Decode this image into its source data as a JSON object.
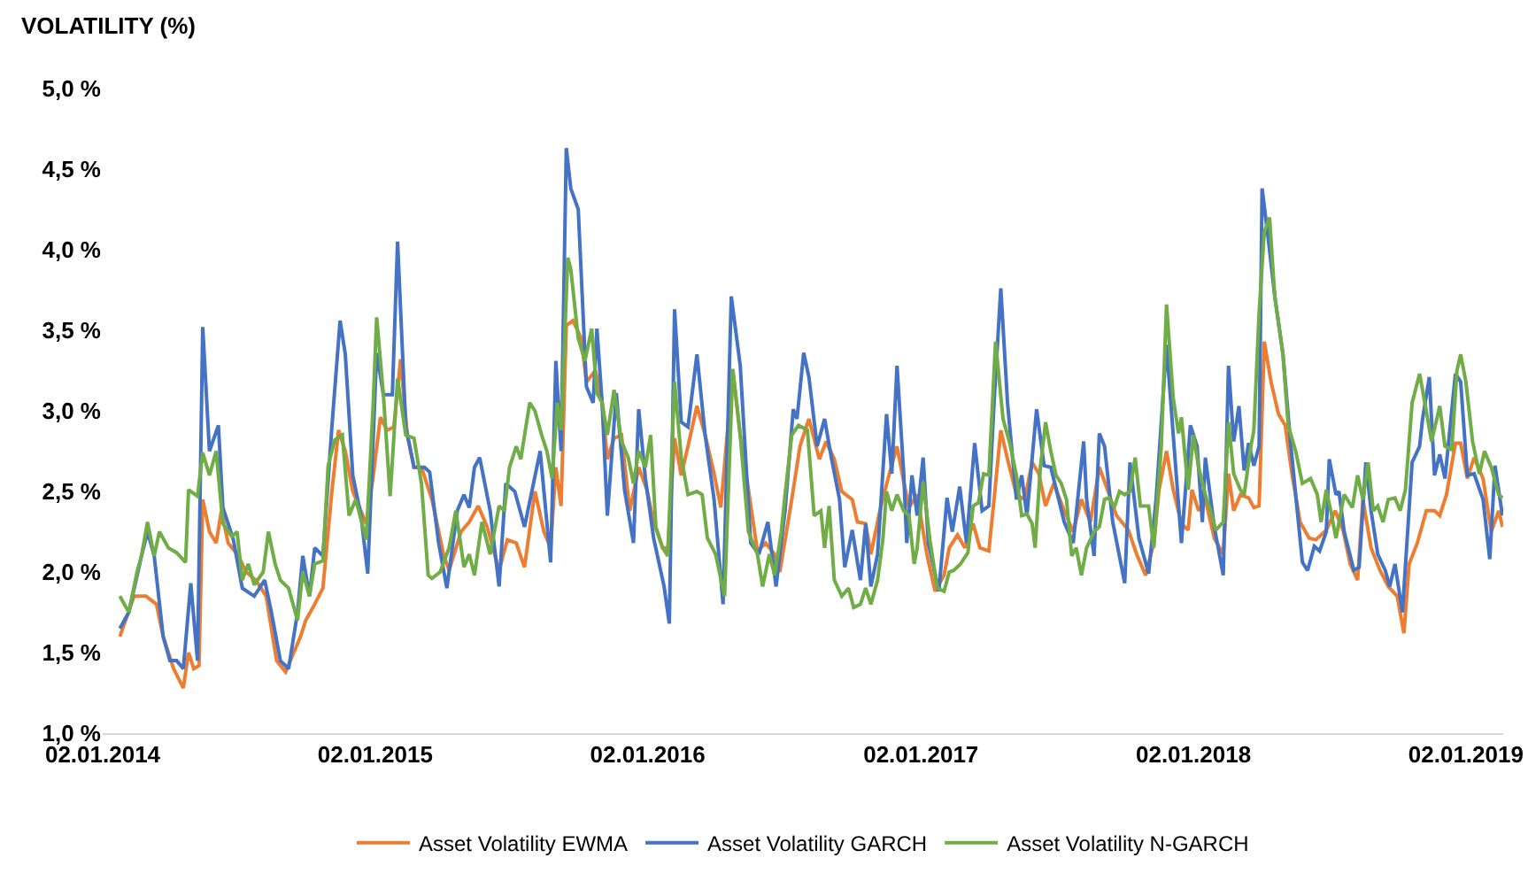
{
  "chart_data": {
    "type": "line",
    "ylabel": "VOLATILITY (%)",
    "xlim": [
      "2014-01-02",
      "2019-02-21"
    ],
    "ylim": [
      1,
      5
    ],
    "xticks": [
      {
        "value": "2014-01-02",
        "label": "02.01.2014"
      },
      {
        "value": "2015-01-02",
        "label": "02.01.2015"
      },
      {
        "value": "2016-01-02",
        "label": "02.01.2016"
      },
      {
        "value": "2017-01-02",
        "label": "02.01.2017"
      },
      {
        "value": "2018-01-02",
        "label": "02.01.2018"
      },
      {
        "value": "2019-01-02",
        "label": "02.01.2019"
      }
    ],
    "yticks": [
      {
        "value": 1,
        "label": "1,0 %"
      },
      {
        "value": 1.5,
        "label": "1,5 %"
      },
      {
        "value": 2,
        "label": "2,0 %"
      },
      {
        "value": 2.5,
        "label": "2,5 %"
      },
      {
        "value": 3,
        "label": "3,0 %"
      },
      {
        "value": 3.5,
        "label": "3,5 %"
      },
      {
        "value": 4,
        "label": "4,0 %"
      },
      {
        "value": 4.5,
        "label": "4,5 %"
      },
      {
        "value": 5,
        "label": "5,0 %"
      }
    ],
    "grid": false,
    "legend": "bottom",
    "marker": "none",
    "line_style": "solid",
    "series": [
      {
        "name": "Asset Volatility EWMA",
        "color": "#ed7d31",
        "x": [
          "2014-01-25",
          "2014-02-13",
          "2014-03-01",
          "2014-03-15",
          "2014-03-24",
          "2014-04-07",
          "2014-04-20",
          "2014-04-27",
          "2014-05-04",
          "2014-05-11",
          "2014-05-16",
          "2014-05-25",
          "2014-06-03",
          "2014-06-10",
          "2014-06-19",
          "2014-07-03",
          "2014-07-13",
          "2014-07-26",
          "2014-08-09",
          "2014-08-23",
          "2014-09-04",
          "2014-09-15",
          "2014-09-24",
          "2014-10-01",
          "2014-10-13",
          "2014-10-24",
          "2014-11-05",
          "2014-11-14",
          "2014-11-23",
          "2014-12-03",
          "2014-12-12",
          "2014-12-21",
          "2014-12-30",
          "2015-01-09",
          "2015-01-18",
          "2015-01-27",
          "2015-02-05",
          "2015-02-14",
          "2015-02-23",
          "2015-03-05",
          "2015-03-19",
          "2015-04-04",
          "2015-04-11",
          "2015-04-27",
          "2015-05-08",
          "2015-05-20",
          "2015-06-01",
          "2015-06-17",
          "2015-06-28",
          "2015-07-10",
          "2015-07-21",
          "2015-08-04",
          "2015-08-16",
          "2015-08-25",
          "2015-09-01",
          "2015-09-08",
          "2015-09-15",
          "2015-09-24",
          "2015-10-05",
          "2015-10-12",
          "2015-10-24",
          "2015-11-02",
          "2015-11-09",
          "2015-11-18",
          "2015-11-28",
          "2015-12-09",
          "2015-12-21",
          "2016-01-01",
          "2016-01-10",
          "2016-01-22",
          "2016-01-29",
          "2016-02-07",
          "2016-02-16",
          "2016-02-25",
          "2016-03-08",
          "2016-03-19",
          "2016-03-31",
          "2016-04-09",
          "2016-04-25",
          "2016-05-05",
          "2016-05-16",
          "2016-05-28",
          "2016-06-08",
          "2016-06-20",
          "2016-06-27",
          "2016-07-13",
          "2016-07-24",
          "2016-08-05",
          "2016-08-19",
          "2016-08-28",
          "2016-09-08",
          "2016-09-18",
          "2016-10-02",
          "2016-10-09",
          "2016-10-20",
          "2016-10-27",
          "2016-11-08",
          "2016-11-19",
          "2016-12-01",
          "2016-12-10",
          "2016-12-17",
          "2016-12-28",
          "2017-01-10",
          "2017-01-21",
          "2017-02-02",
          "2017-02-09",
          "2017-02-20",
          "2017-03-02",
          "2017-03-13",
          "2017-03-22",
          "2017-04-03",
          "2017-04-10",
          "2017-04-19",
          "2017-04-28",
          "2017-05-10",
          "2017-05-21",
          "2017-05-31",
          "2017-06-09",
          "2017-06-18",
          "2017-06-29",
          "2017-07-13",
          "2017-07-25",
          "2017-08-05",
          "2017-08-17",
          "2017-08-29",
          "2017-09-09",
          "2017-09-21",
          "2017-10-07",
          "2017-10-18",
          "2017-10-30",
          "2017-11-10",
          "2017-11-17",
          "2017-11-27",
          "2017-12-06",
          "2017-12-17",
          "2017-12-26",
          "2017-12-31",
          "2018-01-09",
          "2018-01-18",
          "2018-01-30",
          "2018-02-11",
          "2018-02-18",
          "2018-02-25",
          "2018-03-06",
          "2018-03-17",
          "2018-03-24",
          "2018-03-31",
          "2018-04-07",
          "2018-04-16",
          "2018-04-26",
          "2018-05-05",
          "2018-05-14",
          "2018-05-25",
          "2018-06-06",
          "2018-06-15",
          "2018-06-29",
          "2018-07-11",
          "2018-07-22",
          "2018-07-31",
          "2018-08-10",
          "2018-08-17",
          "2018-08-28",
          "2018-09-09",
          "2018-09-20",
          "2018-10-02",
          "2018-10-11",
          "2018-10-18",
          "2018-10-29",
          "2018-11-10",
          "2018-11-21",
          "2018-11-28",
          "2018-12-07",
          "2018-12-19",
          "2018-12-26",
          "2019-01-04",
          "2019-01-13",
          "2019-01-25",
          "2019-02-05",
          "2019-02-15",
          "2019-02-20"
        ],
        "values": [
          1.6,
          1.85,
          1.85,
          1.8,
          1.6,
          1.4,
          1.28,
          1.5,
          1.4,
          1.42,
          2.45,
          2.25,
          2.18,
          2.38,
          2.18,
          2.1,
          2.0,
          1.95,
          1.85,
          1.45,
          1.38,
          1.5,
          1.6,
          1.7,
          1.8,
          1.9,
          2.5,
          2.88,
          2.75,
          2.5,
          2.4,
          2.3,
          2.58,
          2.96,
          2.88,
          2.9,
          3.32,
          2.85,
          2.65,
          2.65,
          2.45,
          2.1,
          2.01,
          2.25,
          2.31,
          2.41,
          2.28,
          2.01,
          2.2,
          2.18,
          2.03,
          2.5,
          2.25,
          2.15,
          2.65,
          2.41,
          3.53,
          3.56,
          3.45,
          3.18,
          3.25,
          3.05,
          2.7,
          2.83,
          2.85,
          2.38,
          2.65,
          2.51,
          2.31,
          2.15,
          2.15,
          2.83,
          2.6,
          2.78,
          3.03,
          2.85,
          2.61,
          2.4,
          3.25,
          2.85,
          2.51,
          2.13,
          2.18,
          2.11,
          2.0,
          2.45,
          2.78,
          2.95,
          2.7,
          2.81,
          2.7,
          2.5,
          2.45,
          2.31,
          2.3,
          2.11,
          2.38,
          2.58,
          2.78,
          2.56,
          2.4,
          2.48,
          2.11,
          1.88,
          1.98,
          2.15,
          2.23,
          2.15,
          2.3,
          2.15,
          2.13,
          2.45,
          2.88,
          2.7,
          2.48,
          2.45,
          2.68,
          2.61,
          2.41,
          2.55,
          2.38,
          2.25,
          2.45,
          2.31,
          2.65,
          2.51,
          2.35,
          2.26,
          2.11,
          1.98,
          2.18,
          2.51,
          2.75,
          2.51,
          2.3,
          2.26,
          2.51,
          2.38,
          2.45,
          2.21,
          2.11,
          2.61,
          2.38,
          2.48,
          2.46,
          2.4,
          2.41,
          3.43,
          3.18,
          2.98,
          2.91,
          2.61,
          2.31,
          2.21,
          2.2,
          2.26,
          2.38,
          2.25,
          2.05,
          1.95,
          2.45,
          2.15,
          2.01,
          1.91,
          1.85,
          1.62,
          2.05,
          2.18,
          2.38,
          2.38,
          2.35,
          2.48,
          2.8,
          2.8,
          2.58,
          2.71,
          2.58,
          2.25,
          2.38,
          2.28
        ]
      },
      {
        "name": "Asset Volatility GARCH",
        "color": "#4472c4",
        "x": [
          "2014-01-25",
          "2014-02-06",
          "2014-02-23",
          "2014-03-03",
          "2014-03-12",
          "2014-03-24",
          "2014-04-02",
          "2014-04-11",
          "2014-04-20",
          "2014-04-30",
          "2014-05-09",
          "2014-05-16",
          "2014-05-25",
          "2014-06-06",
          "2014-06-12",
          "2014-06-26",
          "2014-07-08",
          "2014-07-24",
          "2014-08-07",
          "2014-08-16",
          "2014-08-28",
          "2014-09-08",
          "2014-09-20",
          "2014-09-27",
          "2014-10-06",
          "2014-10-13",
          "2014-10-24",
          "2014-11-05",
          "2014-11-16",
          "2014-11-23",
          "2014-12-03",
          "2014-12-14",
          "2014-12-23",
          "2015-01-04",
          "2015-01-13",
          "2015-01-25",
          "2015-02-01",
          "2015-02-12",
          "2015-02-23",
          "2015-03-09",
          "2015-03-16",
          "2015-03-28",
          "2015-04-08",
          "2015-04-22",
          "2015-05-01",
          "2015-05-08",
          "2015-05-15",
          "2015-05-22",
          "2015-06-05",
          "2015-06-17",
          "2015-06-26",
          "2015-07-08",
          "2015-07-21",
          "2015-08-11",
          "2015-08-25",
          "2015-09-01",
          "2015-09-08",
          "2015-09-15",
          "2015-09-21",
          "2015-10-01",
          "2015-10-12",
          "2015-10-21",
          "2015-10-26",
          "2015-11-02",
          "2015-11-09",
          "2015-11-21",
          "2015-12-02",
          "2015-12-14",
          "2015-12-21",
          "2015-12-30",
          "2016-01-10",
          "2016-01-24",
          "2016-01-31",
          "2016-02-07",
          "2016-02-16",
          "2016-02-25",
          "2016-03-08",
          "2016-03-19",
          "2016-03-31",
          "2016-04-12",
          "2016-04-23",
          "2016-05-05",
          "2016-05-19",
          "2016-05-30",
          "2016-06-11",
          "2016-06-22",
          "2016-07-04",
          "2016-07-15",
          "2016-07-20",
          "2016-07-29",
          "2016-08-05",
          "2016-08-16",
          "2016-08-26",
          "2016-09-04",
          "2016-09-15",
          "2016-09-22",
          "2016-10-02",
          "2016-10-13",
          "2016-10-20",
          "2016-10-27",
          "2016-11-05",
          "2016-11-17",
          "2016-11-24",
          "2016-12-01",
          "2016-12-10",
          "2016-12-14",
          "2016-12-21",
          "2016-12-28",
          "2017-01-05",
          "2017-01-12",
          "2017-01-26",
          "2017-02-06",
          "2017-02-13",
          "2017-02-23",
          "2017-03-04",
          "2017-03-15",
          "2017-03-25",
          "2017-04-03",
          "2017-04-10",
          "2017-04-19",
          "2017-04-28",
          "2017-05-10",
          "2017-05-17",
          "2017-05-24",
          "2017-06-06",
          "2017-06-16",
          "2017-06-25",
          "2017-07-13",
          "2017-07-25",
          "2017-08-08",
          "2017-08-12",
          "2017-08-22",
          "2017-08-29",
          "2017-09-05",
          "2017-09-16",
          "2017-10-02",
          "2017-10-09",
          "2017-10-21",
          "2017-11-03",
          "2017-11-13",
          "2017-11-27",
          "2017-12-06",
          "2017-12-17",
          "2017-12-29",
          "2018-01-07",
          "2018-01-14",
          "2018-01-18",
          "2018-01-30",
          "2018-02-11",
          "2018-02-18",
          "2018-02-25",
          "2018-03-04",
          "2018-03-11",
          "2018-03-17",
          "2018-03-24",
          "2018-03-31",
          "2018-04-04",
          "2018-04-12",
          "2018-04-21",
          "2018-05-02",
          "2018-05-12",
          "2018-05-19",
          "2018-05-28",
          "2018-06-04",
          "2018-06-13",
          "2018-06-20",
          "2018-06-29",
          "2018-07-03",
          "2018-07-12",
          "2018-07-16",
          "2018-07-23",
          "2018-08-05",
          "2018-08-12",
          "2018-08-21",
          "2018-08-28",
          "2018-09-06",
          "2018-09-16",
          "2018-09-22",
          "2018-09-29",
          "2018-10-09",
          "2018-10-22",
          "2018-11-01",
          "2018-11-05",
          "2018-11-14",
          "2018-11-21",
          "2018-11-28",
          "2018-12-05",
          "2018-12-19",
          "2018-12-26",
          "2019-01-04",
          "2019-01-13",
          "2019-01-25",
          "2019-02-03",
          "2019-02-10",
          "2019-02-20"
        ],
        "values": [
          1.65,
          1.75,
          2.1,
          2.25,
          2.1,
          1.6,
          1.45,
          1.45,
          1.4,
          1.93,
          1.45,
          3.52,
          2.75,
          2.91,
          2.4,
          2.2,
          1.9,
          1.85,
          1.95,
          1.75,
          1.45,
          1.4,
          1.75,
          2.1,
          1.85,
          2.15,
          2.1,
          2.9,
          3.56,
          3.35,
          2.6,
          2.35,
          1.99,
          3.36,
          3.1,
          3.1,
          4.05,
          2.9,
          2.65,
          2.65,
          2.62,
          2.18,
          1.9,
          2.38,
          2.48,
          2.4,
          2.65,
          2.71,
          2.38,
          1.91,
          2.55,
          2.5,
          2.28,
          2.75,
          2.06,
          3.31,
          2.75,
          4.63,
          4.38,
          4.25,
          3.15,
          3.05,
          3.51,
          3.05,
          2.35,
          3.11,
          2.51,
          2.18,
          3.01,
          2.58,
          2.21,
          1.91,
          1.68,
          3.63,
          2.93,
          2.9,
          3.35,
          2.85,
          2.45,
          1.8,
          3.71,
          3.28,
          2.18,
          2.11,
          2.31,
          1.91,
          2.38,
          3.01,
          2.95,
          3.36,
          3.21,
          2.78,
          2.95,
          2.71,
          2.45,
          2.03,
          2.26,
          1.95,
          2.3,
          1.91,
          2.11,
          2.98,
          2.61,
          3.28,
          2.61,
          2.18,
          2.6,
          2.35,
          2.71,
          2.18,
          1.88,
          2.46,
          2.25,
          2.53,
          2.18,
          2.8,
          2.38,
          2.41,
          3.05,
          3.76,
          3.05,
          2.45,
          2.6,
          2.35,
          3.01,
          2.66,
          2.65,
          2.31,
          2.18,
          2.81,
          2.45,
          2.1,
          2.86,
          2.78,
          2.31,
          1.93,
          2.68,
          2.21,
          1.99,
          2.45,
          3.41,
          2.85,
          2.18,
          2.91,
          2.78,
          2.31,
          2.71,
          2.28,
          1.98,
          3.28,
          2.81,
          3.03,
          2.63,
          2.8,
          2.66,
          2.78,
          4.38,
          4.08,
          3.71,
          3.35,
          2.81,
          2.48,
          2.06,
          2.01,
          2.16,
          2.13,
          2.25,
          2.7,
          2.48,
          2.5,
          2.25,
          2.01,
          2.03,
          2.68,
          2.38,
          2.11,
          2.01,
          1.91,
          2.05,
          1.75,
          2.68,
          2.78,
          2.95,
          3.21,
          2.6,
          2.73,
          2.58,
          3.23,
          3.18,
          2.6,
          2.61,
          2.45,
          2.08,
          2.66,
          2.35
        ]
      },
      {
        "name": "Asset Volatility N-GARCH",
        "color": "#70ad47",
        "x": [
          "2014-01-25",
          "2014-02-06",
          "2014-02-17",
          "2014-02-23",
          "2014-03-03",
          "2014-03-12",
          "2014-03-19",
          "2014-03-31",
          "2014-04-11",
          "2014-04-23",
          "2014-04-27",
          "2014-05-09",
          "2014-05-16",
          "2014-05-25",
          "2014-06-03",
          "2014-06-12",
          "2014-06-24",
          "2014-07-01",
          "2014-07-08",
          "2014-07-16",
          "2014-07-24",
          "2014-08-05",
          "2014-08-12",
          "2014-08-21",
          "2014-08-28",
          "2014-09-08",
          "2014-09-20",
          "2014-09-27",
          "2014-10-06",
          "2014-10-13",
          "2014-10-24",
          "2014-10-31",
          "2014-11-09",
          "2014-11-19",
          "2014-11-28",
          "2014-12-07",
          "2014-12-21",
          "2014-12-30",
          "2015-01-04",
          "2015-01-13",
          "2015-01-22",
          "2015-02-01",
          "2015-02-12",
          "2015-02-23",
          "2015-03-05",
          "2015-03-14",
          "2015-03-19",
          "2015-03-30",
          "2015-04-11",
          "2015-04-20",
          "2015-05-01",
          "2015-05-08",
          "2015-05-15",
          "2015-05-25",
          "2015-06-05",
          "2015-06-17",
          "2015-06-24",
          "2015-07-01",
          "2015-07-10",
          "2015-07-16",
          "2015-07-28",
          "2015-08-04",
          "2015-08-13",
          "2015-08-20",
          "2015-08-27",
          "2015-09-03",
          "2015-09-08",
          "2015-09-17",
          "2015-09-21",
          "2015-10-01",
          "2015-10-10",
          "2015-10-19",
          "2015-10-26",
          "2015-11-02",
          "2015-11-09",
          "2015-11-18",
          "2015-11-28",
          "2015-12-07",
          "2015-12-14",
          "2015-12-21",
          "2015-12-30",
          "2016-01-06",
          "2016-01-13",
          "2016-01-22",
          "2016-01-29",
          "2016-02-07",
          "2016-02-16",
          "2016-02-25",
          "2016-03-08",
          "2016-03-15",
          "2016-03-22",
          "2016-04-02",
          "2016-04-14",
          "2016-04-25",
          "2016-05-05",
          "2016-05-16",
          "2016-05-28",
          "2016-06-04",
          "2016-06-13",
          "2016-06-20",
          "2016-06-29",
          "2016-07-04",
          "2016-07-13",
          "2016-07-22",
          "2016-08-03",
          "2016-08-12",
          "2016-08-21",
          "2016-08-26",
          "2016-09-01",
          "2016-09-08",
          "2016-09-18",
          "2016-09-27",
          "2016-10-04",
          "2016-10-13",
          "2016-10-20",
          "2016-10-27",
          "2016-11-05",
          "2016-11-12",
          "2016-11-17",
          "2016-11-24",
          "2016-12-01",
          "2016-12-10",
          "2016-12-17",
          "2016-12-24",
          "2016-12-28",
          "2017-01-05",
          "2017-01-14",
          "2017-01-24",
          "2017-02-02",
          "2017-02-09",
          "2017-02-15",
          "2017-02-24",
          "2017-03-06",
          "2017-03-13",
          "2017-03-20",
          "2017-03-27",
          "2017-04-03",
          "2017-04-12",
          "2017-04-22",
          "2017-05-01",
          "2017-05-10",
          "2017-05-17",
          "2017-05-24",
          "2017-05-31",
          "2017-06-04",
          "2017-06-11",
          "2017-06-18",
          "2017-06-25",
          "2017-07-02",
          "2017-07-09",
          "2017-07-16",
          "2017-07-23",
          "2017-07-29",
          "2017-08-05",
          "2017-08-12",
          "2017-08-22",
          "2017-08-29",
          "2017-09-05",
          "2017-09-11",
          "2017-09-18",
          "2017-09-25",
          "2017-10-02",
          "2017-10-09",
          "2017-10-16",
          "2017-10-23",
          "2017-11-03",
          "2017-11-10",
          "2017-11-20",
          "2017-11-27",
          "2017-12-06",
          "2017-12-13",
          "2017-12-17",
          "2017-12-26",
          "2018-01-02",
          "2018-01-09",
          "2018-01-18",
          "2018-01-25",
          "2018-02-01",
          "2018-02-11",
          "2018-02-18",
          "2018-02-25",
          "2018-03-06",
          "2018-03-11",
          "2018-03-20",
          "2018-03-24",
          "2018-03-31",
          "2018-04-07",
          "2018-04-14",
          "2018-04-21",
          "2018-05-02",
          "2018-05-09",
          "2018-05-19",
          "2018-05-28",
          "2018-06-08",
          "2018-06-17",
          "2018-06-22",
          "2018-06-29",
          "2018-07-05",
          "2018-07-12",
          "2018-07-23",
          "2018-08-03",
          "2018-08-10",
          "2018-08-17",
          "2018-08-24",
          "2018-08-31",
          "2018-09-06",
          "2018-09-13",
          "2018-09-20",
          "2018-09-29",
          "2018-10-06",
          "2018-10-13",
          "2018-10-22",
          "2018-11-01",
          "2018-11-08",
          "2018-11-17",
          "2018-11-28",
          "2018-12-05",
          "2018-12-14",
          "2018-12-21",
          "2018-12-26",
          "2019-01-02",
          "2019-01-11",
          "2019-01-20",
          "2019-01-27",
          "2019-02-05",
          "2019-02-15",
          "2019-02-20"
        ],
        "values": [
          1.85,
          1.75,
          2.0,
          2.1,
          2.31,
          2.1,
          2.25,
          2.15,
          2.12,
          2.06,
          2.51,
          2.47,
          2.74,
          2.6,
          2.75,
          2.3,
          2.22,
          2.25,
          1.95,
          2.05,
          1.92,
          2.0,
          2.25,
          2.05,
          1.95,
          1.9,
          1.7,
          2.0,
          1.85,
          2.05,
          2.07,
          2.66,
          2.82,
          2.85,
          2.35,
          2.45,
          2.2,
          3.01,
          3.58,
          3.1,
          2.47,
          3.2,
          2.85,
          2.83,
          2.55,
          1.98,
          1.96,
          2.0,
          2.15,
          2.38,
          2.03,
          2.11,
          1.98,
          2.31,
          2.11,
          2.41,
          2.38,
          2.65,
          2.78,
          2.7,
          3.05,
          3.0,
          2.85,
          2.75,
          2.58,
          3.05,
          2.88,
          3.95,
          3.88,
          3.45,
          3.31,
          3.51,
          3.11,
          3.05,
          2.85,
          3.13,
          2.81,
          2.71,
          2.55,
          2.75,
          2.65,
          2.85,
          2.28,
          2.15,
          2.1,
          3.18,
          2.71,
          2.48,
          2.5,
          2.48,
          2.21,
          2.11,
          1.85,
          3.26,
          2.85,
          2.25,
          2.11,
          1.91,
          2.11,
          1.98,
          2.25,
          2.48,
          2.85,
          2.91,
          2.88,
          2.35,
          2.38,
          2.15,
          2.41,
          1.95,
          1.85,
          1.9,
          1.78,
          1.8,
          1.9,
          1.8,
          1.95,
          2.2,
          2.5,
          2.38,
          2.48,
          2.38,
          2.35,
          2.05,
          2.15,
          2.56,
          2.2,
          1.9,
          1.88,
          2.0,
          2.01,
          2.05,
          2.12,
          2.41,
          2.43,
          2.61,
          2.6,
          3.43,
          2.95,
          2.8,
          2.6,
          2.35,
          2.36,
          2.3,
          2.15,
          2.65,
          2.93,
          2.75,
          2.6,
          2.55,
          2.45,
          2.1,
          2.15,
          1.98,
          2.15,
          2.25,
          2.28,
          2.45,
          2.46,
          2.4,
          2.5,
          2.48,
          2.5,
          2.71,
          2.41,
          2.41,
          2.15,
          2.78,
          3.66,
          3.08,
          2.86,
          2.96,
          2.51,
          2.85,
          2.65,
          2.48,
          2.38,
          2.26,
          2.31,
          2.93,
          2.61,
          2.51,
          2.48,
          2.78,
          2.88,
          3.61,
          4.11,
          4.2,
          3.71,
          3.35,
          2.91,
          2.75,
          2.55,
          2.58,
          2.48,
          2.31,
          2.51,
          2.38,
          2.21,
          2.48,
          2.4,
          2.6,
          2.45,
          2.68,
          2.38,
          2.41,
          2.31,
          2.45,
          2.46,
          2.38,
          2.51,
          3.05,
          3.23,
          3.05,
          2.81,
          3.03,
          2.78,
          2.76,
          3.25,
          3.35,
          3.18,
          2.81,
          2.61,
          2.75,
          2.65,
          2.48,
          2.46
        ]
      }
    ]
  }
}
